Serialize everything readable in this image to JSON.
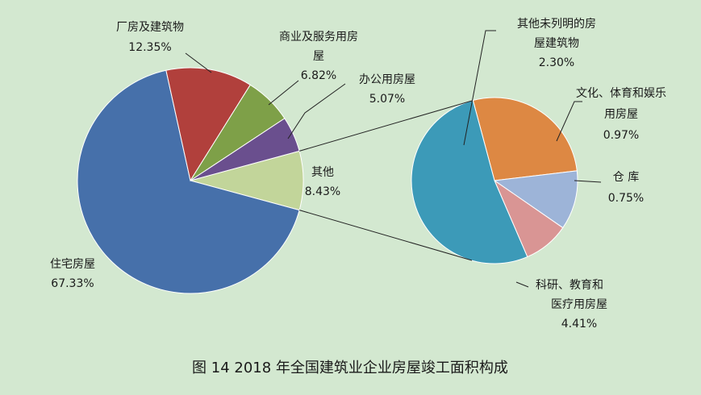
{
  "caption": "图 14    2018 年全国建筑业企业房屋竣工面积构成",
  "chart_data": [
    {
      "type": "pie",
      "slices": [
        {
          "name": "住宅房屋",
          "value": 67.33,
          "label": "67.33%",
          "color": "#4670aa"
        },
        {
          "name": "厂房及建筑物",
          "value": 12.35,
          "label": "12.35%",
          "color": "#b1403c"
        },
        {
          "name": "商业及服务用房屋",
          "value": 6.82,
          "label": "6.82%",
          "color": "#7ea048"
        },
        {
          "name": "办公用房屋",
          "value": 5.07,
          "label": "5.07%",
          "color": "#6a4f8e"
        },
        {
          "name": "其他",
          "value": 8.43,
          "label": "8.43%",
          "color": "#c2d59a"
        }
      ]
    },
    {
      "type": "pie",
      "slices": [
        {
          "name": "其他未列明的房屋建筑物",
          "value": 2.3,
          "label": "2.30%",
          "color": "#dd8843"
        },
        {
          "name": "文化、体育和娱乐用房屋",
          "value": 0.97,
          "label": "0.97%",
          "color": "#9db4d8"
        },
        {
          "name": "仓 库",
          "value": 0.75,
          "label": "0.75%",
          "color": "#d99594"
        },
        {
          "name": "科研、教育和医疗用房屋",
          "value": 4.41,
          "label": "4.41%",
          "color": "#3c9ab8"
        }
      ]
    }
  ]
}
